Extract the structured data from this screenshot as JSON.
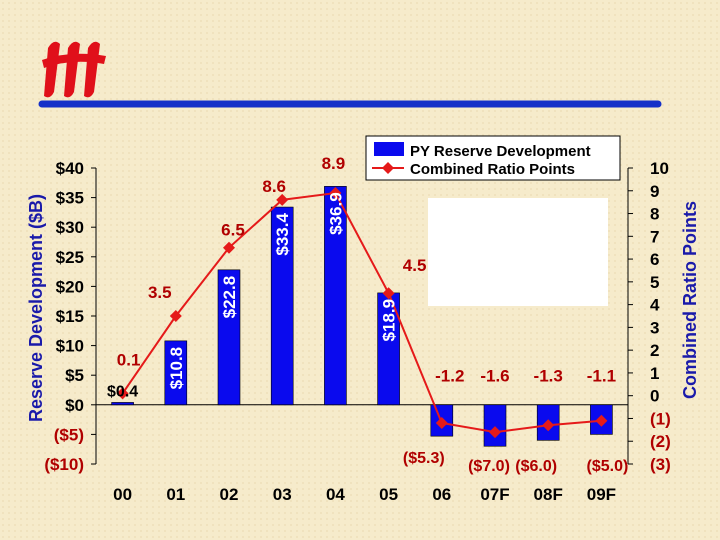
{
  "logo": {
    "text": "iii",
    "color": "#E0101A"
  },
  "rule": {
    "color": "#1530C8"
  },
  "chart_data": {
    "type": "bar",
    "categories": [
      "00",
      "01",
      "02",
      "03",
      "04",
      "05",
      "06",
      "07F",
      "08F",
      "09F"
    ],
    "series": [
      {
        "name": "PY Reserve Development",
        "type": "bar",
        "axis": "left",
        "values": [
          0.4,
          10.8,
          22.8,
          33.4,
          36.9,
          18.9,
          -5.3,
          -7.0,
          -6.0,
          -5.0
        ],
        "labels": [
          "$0.4",
          "$10.8",
          "$22.8",
          "$33.4",
          "$36.9",
          "$18.9",
          "($5.3)",
          "($7.0)",
          "($6.0)",
          "($5.0)"
        ],
        "color": "#0A0AEE"
      },
      {
        "name": "Combined Ratio Points",
        "type": "line",
        "axis": "right",
        "values": [
          0.1,
          3.5,
          6.5,
          8.6,
          8.9,
          4.5,
          -1.2,
          -1.6,
          -1.3,
          -1.1
        ],
        "labels": [
          "0.1",
          "3.5",
          "6.5",
          "8.6",
          "8.9",
          "4.5",
          "-1.2",
          "-1.6",
          "-1.3",
          "-1.1"
        ],
        "color": "#E51A1A"
      }
    ],
    "ylabel_left": "Reserve Development ($B)",
    "ylabel_right": "Combined Ratio Points",
    "ylim_left": [
      -10,
      40
    ],
    "ylim_right": [
      -3,
      10
    ],
    "yticks_left": [
      "$40",
      "$35",
      "$30",
      "$25",
      "$20",
      "$15",
      "$10",
      "$5",
      "$0",
      "($5)",
      "($10)"
    ],
    "yticks_right": [
      "10",
      "9",
      "8",
      "7",
      "6",
      "5",
      "4",
      "3",
      "2",
      "1",
      "0",
      "(1)",
      "(2)",
      "(3)"
    ],
    "legend": [
      "PY Reserve Development",
      "Combined Ratio Points"
    ],
    "legend_position": "top-right",
    "label_colors": {
      "bar_text": "#FFFFFF",
      "line_text": "#B00000",
      "neg_bar_text": "#B00000",
      "tick_text": "#B00000"
    }
  }
}
